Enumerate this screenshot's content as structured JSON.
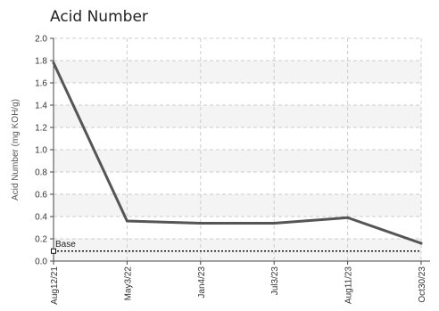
{
  "chart_data": {
    "type": "line",
    "title": "Acid Number",
    "ylabel": "Acid Number (mg KOH/g)",
    "xlabel": "",
    "ylim": [
      0,
      2.0
    ],
    "yticks": [
      "0.0",
      "0.2",
      "0.4",
      "0.6",
      "0.8",
      "1.0",
      "1.2",
      "1.4",
      "1.6",
      "1.8",
      "2.0"
    ],
    "x": [
      "Aug12/21",
      "May3/22",
      "Jan4/23",
      "Jul3/23",
      "Aug11/23",
      "Oct30/23"
    ],
    "series": [
      {
        "values": [
          1.78,
          0.36,
          0.34,
          0.34,
          0.39,
          0.16
        ],
        "color": "#555555"
      }
    ],
    "baseline": {
      "label": "Base",
      "value": 0.09,
      "color": "#111111"
    },
    "grid": true,
    "band_colors": [
      "#f4f4f4",
      "#ffffff"
    ]
  }
}
